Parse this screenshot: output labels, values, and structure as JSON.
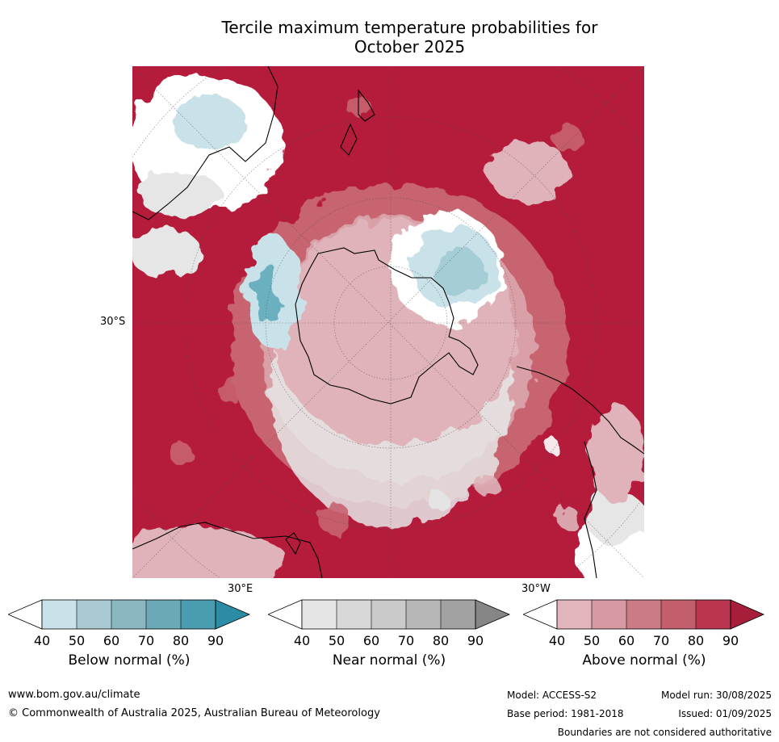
{
  "title_line1": "Tercile maximum temperature probabilities for",
  "title_line2": "October 2025",
  "map": {
    "projection": "south-polar-stereographic",
    "labels": {
      "lat": "30°S",
      "lon_east": "30°E",
      "lon_west": "30°W"
    },
    "colors": {
      "ocean_dominant": "#b51c3c",
      "above_light": "#dfb3b9",
      "above_mid": "#c8646f",
      "near_normal": "#e6e6e6",
      "below_light": "#c9e2e9",
      "below_mid": "#8fc3cf",
      "neutral": "#ffffff"
    }
  },
  "colorbars": [
    {
      "caption": "Below normal (%)",
      "ticks": [
        "40",
        "50",
        "60",
        "70",
        "80",
        "90"
      ],
      "colors": [
        "#c9e1e8",
        "#a9cad2",
        "#8ab8c1",
        "#6aa9b5",
        "#4a9db0"
      ],
      "extend_color": "#2c8ca6"
    },
    {
      "caption": "Near normal (%)",
      "ticks": [
        "40",
        "50",
        "60",
        "70",
        "80",
        "90"
      ],
      "colors": [
        "#e5e5e5",
        "#d8d8d8",
        "#cacaca",
        "#b7b7b7",
        "#a2a2a2"
      ],
      "extend_color": "#868686"
    },
    {
      "caption": "Above normal (%)",
      "ticks": [
        "40",
        "50",
        "60",
        "70",
        "80",
        "90"
      ],
      "colors": [
        "#e1b5bb",
        "#d79aa2",
        "#cb7b85",
        "#c35e6c",
        "#b93550"
      ],
      "extend_color": "#a71e3b"
    }
  ],
  "footer": {
    "url": "www.bom.gov.au/climate",
    "copyright": "© Commonwealth of Australia 2025, Australian Bureau of Meteorology",
    "model": "Model: ACCESS-S2",
    "base_period": "Base period: 1981-2018",
    "model_run": "Model run: 30/08/2025",
    "issued": "Issued: 01/09/2025",
    "disclaimer": "Boundaries are not considered authoritative"
  }
}
